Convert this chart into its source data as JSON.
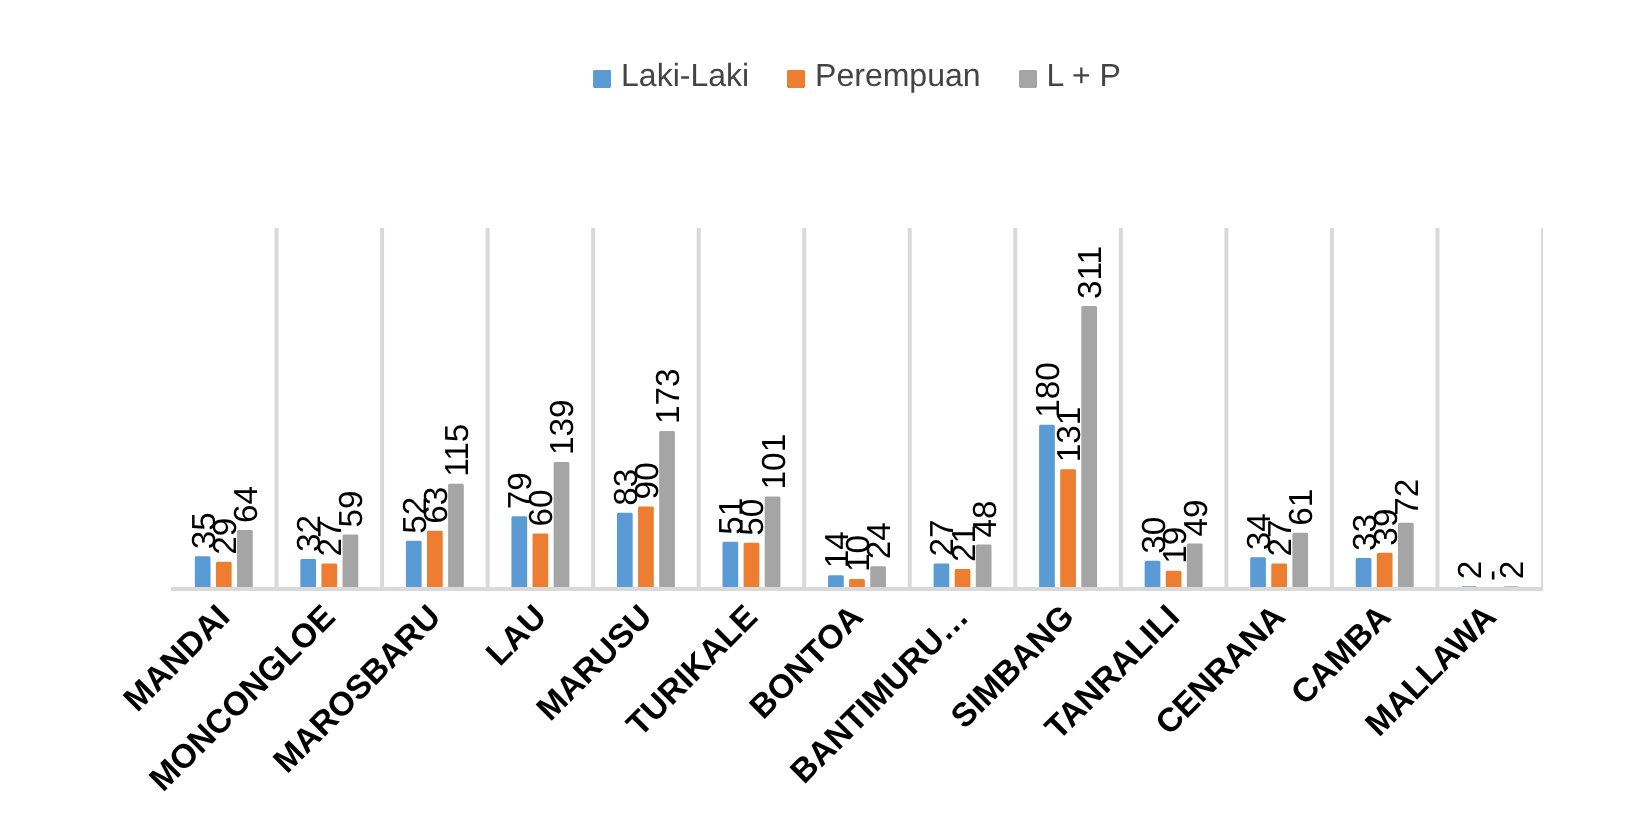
{
  "chart_data": {
    "type": "bar",
    "categories": [
      "MANDAI",
      "MONCONGLOE",
      "MAROSBARU",
      "LAU",
      "MARUSU",
      "TURIKALE",
      "BONTOA",
      "BANTIMURU…",
      "SIMBANG",
      "TANRALILI",
      "CENRANA",
      "CAMBA",
      "MALLAWA"
    ],
    "series": [
      {
        "name": "Laki-Laki",
        "color": "#5b9bd5",
        "values": [
          35,
          32,
          52,
          79,
          83,
          51,
          14,
          27,
          180,
          30,
          34,
          33,
          2
        ]
      },
      {
        "name": "Perempuan",
        "color": "#ed7d31",
        "values": [
          29,
          27,
          63,
          60,
          90,
          50,
          10,
          21,
          131,
          19,
          27,
          39,
          0
        ],
        "value_labels": [
          "29",
          "27",
          "63",
          "60",
          "90",
          "50",
          "10",
          "21",
          "131",
          "19",
          "27",
          "39",
          "-"
        ]
      },
      {
        "name": "L + P",
        "color": "#a5a5a5",
        "values": [
          64,
          59,
          115,
          139,
          173,
          101,
          24,
          48,
          311,
          49,
          61,
          72,
          2
        ]
      }
    ],
    "data_labels": true,
    "grid": "x",
    "legend": "top"
  }
}
